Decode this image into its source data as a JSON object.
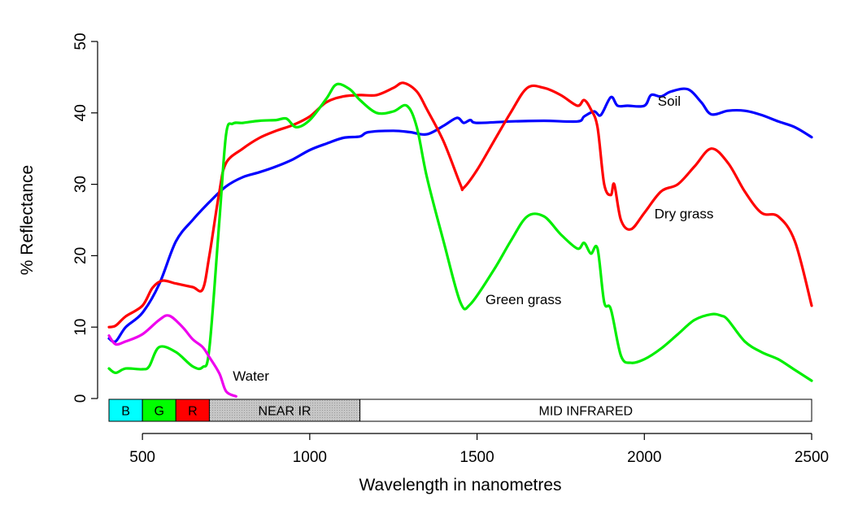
{
  "chart_data": {
    "type": "line",
    "title": "",
    "xlabel": "Wavelength in nanometres",
    "ylabel": "% Reflectance",
    "xlim": [
      400,
      2500
    ],
    "ylim": [
      0,
      50
    ],
    "x_ticks": [
      500,
      1000,
      1500,
      2000,
      2500
    ],
    "y_ticks": [
      0,
      10,
      20,
      30,
      40,
      50
    ],
    "grid": false,
    "legend": "none (series labelled directly on the plot)",
    "series": [
      {
        "name": "Soil",
        "color": "#0000ff",
        "points": [
          [
            400,
            8.4
          ],
          [
            420,
            8.0
          ],
          [
            450,
            10.0
          ],
          [
            500,
            12.0
          ],
          [
            550,
            16.0
          ],
          [
            600,
            22.0
          ],
          [
            650,
            25.0
          ],
          [
            700,
            27.5
          ],
          [
            750,
            29.7
          ],
          [
            800,
            31.0
          ],
          [
            850,
            31.7
          ],
          [
            900,
            32.5
          ],
          [
            950,
            33.5
          ],
          [
            1000,
            34.8
          ],
          [
            1050,
            35.7
          ],
          [
            1100,
            36.5
          ],
          [
            1150,
            36.7
          ],
          [
            1175,
            37.3
          ],
          [
            1250,
            37.5
          ],
          [
            1300,
            37.3
          ],
          [
            1350,
            37.0
          ],
          [
            1400,
            38.2
          ],
          [
            1440,
            39.3
          ],
          [
            1460,
            38.6
          ],
          [
            1480,
            39.0
          ],
          [
            1500,
            38.6
          ],
          [
            1600,
            38.8
          ],
          [
            1700,
            38.9
          ],
          [
            1800,
            38.8
          ],
          [
            1820,
            39.5
          ],
          [
            1850,
            40.2
          ],
          [
            1870,
            39.7
          ],
          [
            1900,
            42.2
          ],
          [
            1920,
            41.0
          ],
          [
            1950,
            41.0
          ],
          [
            2000,
            41.0
          ],
          [
            2020,
            42.5
          ],
          [
            2050,
            42.3
          ],
          [
            2080,
            43.0
          ],
          [
            2130,
            43.3
          ],
          [
            2170,
            41.5
          ],
          [
            2200,
            39.8
          ],
          [
            2250,
            40.3
          ],
          [
            2300,
            40.3
          ],
          [
            2350,
            39.7
          ],
          [
            2400,
            38.8
          ],
          [
            2450,
            38.0
          ],
          [
            2500,
            36.6
          ]
        ]
      },
      {
        "name": "Dry grass",
        "color": "#ff0000",
        "points": [
          [
            400,
            10.0
          ],
          [
            420,
            10.2
          ],
          [
            450,
            11.5
          ],
          [
            500,
            13.0
          ],
          [
            530,
            15.5
          ],
          [
            560,
            16.5
          ],
          [
            600,
            16.1
          ],
          [
            650,
            15.6
          ],
          [
            680,
            15.3
          ],
          [
            700,
            20.0
          ],
          [
            730,
            29.0
          ],
          [
            750,
            33.0
          ],
          [
            800,
            35.0
          ],
          [
            850,
            36.5
          ],
          [
            900,
            37.5
          ],
          [
            950,
            38.3
          ],
          [
            1000,
            39.5
          ],
          [
            1050,
            41.5
          ],
          [
            1100,
            42.3
          ],
          [
            1150,
            42.5
          ],
          [
            1200,
            42.5
          ],
          [
            1250,
            43.5
          ],
          [
            1280,
            44.2
          ],
          [
            1320,
            43.0
          ],
          [
            1350,
            40.5
          ],
          [
            1400,
            36.0
          ],
          [
            1450,
            30.0
          ],
          [
            1460,
            29.5
          ],
          [
            1500,
            32.0
          ],
          [
            1550,
            36.0
          ],
          [
            1600,
            40.0
          ],
          [
            1650,
            43.5
          ],
          [
            1700,
            43.5
          ],
          [
            1750,
            42.5
          ],
          [
            1800,
            41.0
          ],
          [
            1820,
            41.8
          ],
          [
            1840,
            40.5
          ],
          [
            1860,
            38.0
          ],
          [
            1880,
            30.0
          ],
          [
            1900,
            28.5
          ],
          [
            1910,
            30.0
          ],
          [
            1930,
            25.0
          ],
          [
            1960,
            23.7
          ],
          [
            2000,
            26.0
          ],
          [
            2050,
            29.0
          ],
          [
            2100,
            30.0
          ],
          [
            2150,
            32.5
          ],
          [
            2200,
            35.0
          ],
          [
            2250,
            33.0
          ],
          [
            2300,
            29.0
          ],
          [
            2350,
            26.0
          ],
          [
            2400,
            25.5
          ],
          [
            2450,
            22.0
          ],
          [
            2500,
            13.0
          ]
        ]
      },
      {
        "name": "Green grass",
        "color": "#00ee00",
        "points": [
          [
            400,
            4.2
          ],
          [
            420,
            3.6
          ],
          [
            450,
            4.2
          ],
          [
            500,
            4.1
          ],
          [
            520,
            4.5
          ],
          [
            550,
            7.2
          ],
          [
            600,
            6.5
          ],
          [
            650,
            4.5
          ],
          [
            680,
            4.4
          ],
          [
            700,
            7.0
          ],
          [
            730,
            25.0
          ],
          [
            750,
            37.0
          ],
          [
            770,
            38.5
          ],
          [
            800,
            38.6
          ],
          [
            850,
            38.9
          ],
          [
            900,
            39.0
          ],
          [
            930,
            39.2
          ],
          [
            960,
            38.0
          ],
          [
            1000,
            39.0
          ],
          [
            1050,
            42.0
          ],
          [
            1080,
            44.0
          ],
          [
            1120,
            43.3
          ],
          [
            1150,
            41.8
          ],
          [
            1200,
            40.0
          ],
          [
            1250,
            40.2
          ],
          [
            1290,
            41.0
          ],
          [
            1320,
            38.0
          ],
          [
            1350,
            31.0
          ],
          [
            1400,
            22.0
          ],
          [
            1450,
            13.5
          ],
          [
            1480,
            13.2
          ],
          [
            1550,
            18.0
          ],
          [
            1600,
            22.0
          ],
          [
            1650,
            25.5
          ],
          [
            1700,
            25.5
          ],
          [
            1750,
            23.0
          ],
          [
            1800,
            21.0
          ],
          [
            1820,
            21.8
          ],
          [
            1840,
            20.3
          ],
          [
            1860,
            21.0
          ],
          [
            1880,
            13.5
          ],
          [
            1900,
            12.5
          ],
          [
            1930,
            6.0
          ],
          [
            1960,
            5.0
          ],
          [
            2000,
            5.5
          ],
          [
            2050,
            7.0
          ],
          [
            2100,
            9.0
          ],
          [
            2150,
            11.0
          ],
          [
            2200,
            11.8
          ],
          [
            2230,
            11.6
          ],
          [
            2250,
            11.0
          ],
          [
            2300,
            8.0
          ],
          [
            2350,
            6.5
          ],
          [
            2400,
            5.5
          ],
          [
            2450,
            4.0
          ],
          [
            2500,
            2.5
          ]
        ]
      },
      {
        "name": "Water",
        "color": "#ee00ee",
        "points": [
          [
            400,
            8.8
          ],
          [
            420,
            7.6
          ],
          [
            450,
            8.0
          ],
          [
            500,
            9.0
          ],
          [
            550,
            11.0
          ],
          [
            580,
            11.6
          ],
          [
            620,
            10.0
          ],
          [
            650,
            8.3
          ],
          [
            680,
            7.2
          ],
          [
            700,
            5.8
          ],
          [
            730,
            3.5
          ],
          [
            750,
            1.0
          ],
          [
            780,
            0.3
          ]
        ]
      }
    ],
    "label_positions": [
      {
        "series": "Soil",
        "x": 2040,
        "y": 41.0
      },
      {
        "series": "Dry grass",
        "x": 2030,
        "y": 25.2
      },
      {
        "series": "Green grass",
        "x": 1525,
        "y": 13.2
      },
      {
        "series": "Water",
        "x": 770,
        "y": 2.5
      }
    ],
    "spectral_bands": [
      {
        "label": "B",
        "start": 400,
        "end": 500,
        "color": "#00ffff",
        "hatched": false
      },
      {
        "label": "G",
        "start": 500,
        "end": 600,
        "color": "#00ff00",
        "hatched": false
      },
      {
        "label": "R",
        "start": 600,
        "end": 700,
        "color": "#ff0000",
        "hatched": false
      },
      {
        "label": "NEAR IR",
        "start": 700,
        "end": 1150,
        "color": "#c8c8c8",
        "hatched": true
      },
      {
        "label": "MID INFRARED",
        "start": 1150,
        "end": 2500,
        "color": "#ffffff",
        "hatched": false
      }
    ]
  }
}
